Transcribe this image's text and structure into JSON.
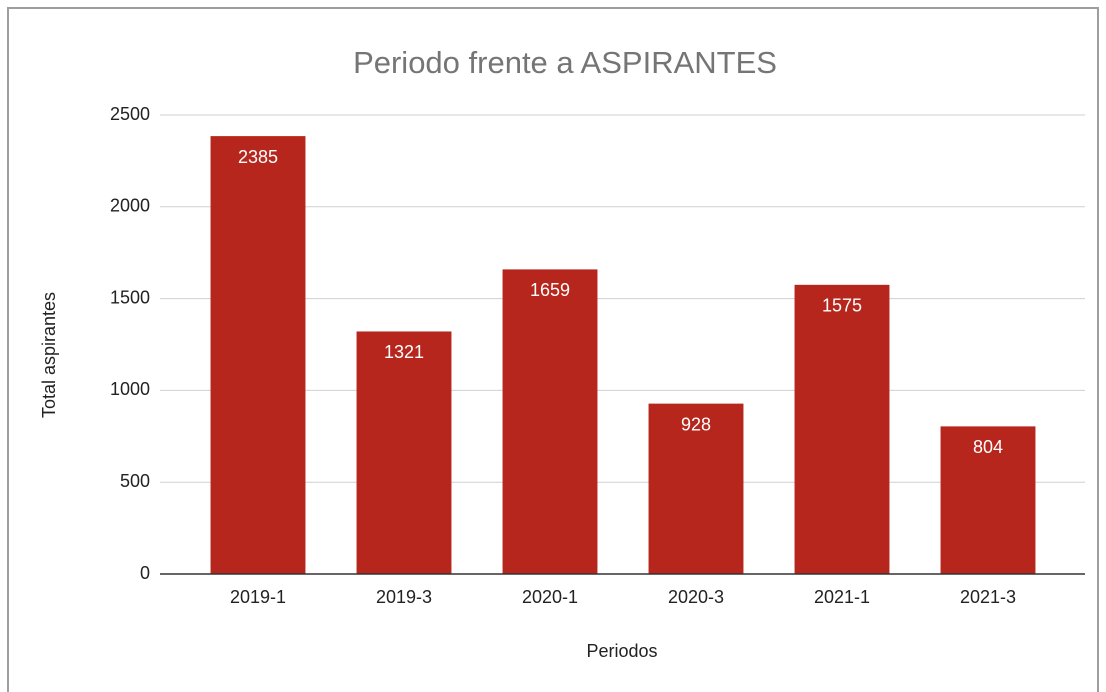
{
  "chart_data": {
    "type": "bar",
    "title": "Periodo frente a ASPIRANTES",
    "x_label": "Periodos",
    "y_label": "Total aspirantes",
    "categories": [
      "2019-1",
      "2019-3",
      "2020-1",
      "2020-3",
      "2021-1",
      "2021-3"
    ],
    "values": [
      2385,
      1321,
      1659,
      928,
      1575,
      804
    ],
    "color": "#b7261c",
    "ylim": [
      0,
      2500
    ],
    "yticks": [
      0,
      500,
      1000,
      1500,
      2000,
      2500
    ],
    "grid": true
  }
}
